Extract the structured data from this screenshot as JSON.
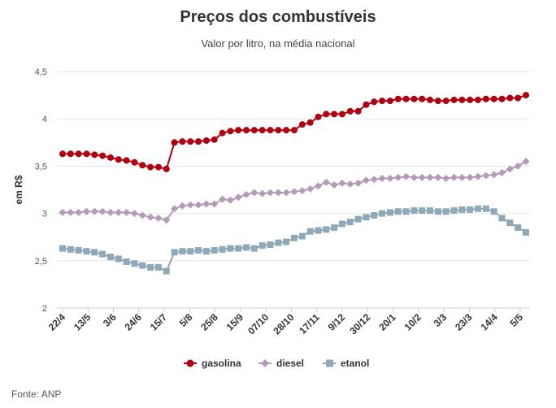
{
  "chart_data": {
    "type": "line",
    "title": "Preços dos combustíveis",
    "subtitle": "Valor por litro, na média nacional",
    "ylabel": "em R$",
    "source": "Fonte: ANP",
    "ylim": [
      2,
      4.5
    ],
    "yticks": [
      2,
      2.5,
      3,
      3.5,
      4,
      4.5
    ],
    "ytick_labels": [
      "2",
      "2,5",
      "3",
      "3,5",
      "4",
      "4,5"
    ],
    "xtick_labels": [
      "22/4",
      "13/5",
      "3/6",
      "24/6",
      "15/7",
      "5/8",
      "25/8",
      "15/9",
      "07/10",
      "28/10",
      "17/11",
      "9/12",
      "30/12",
      "20/1",
      "10/2",
      "3/3",
      "23/3",
      "14/4",
      "5/5"
    ],
    "legend_position": "bottom",
    "grid": true,
    "series": [
      {
        "name": "gasolina",
        "color": "#b0000f",
        "marker": "circle",
        "values": [
          3.63,
          3.63,
          3.63,
          3.63,
          3.62,
          3.61,
          3.59,
          3.57,
          3.56,
          3.54,
          3.51,
          3.49,
          3.49,
          3.47,
          3.75,
          3.76,
          3.76,
          3.76,
          3.77,
          3.78,
          3.85,
          3.87,
          3.88,
          3.88,
          3.88,
          3.88,
          3.88,
          3.88,
          3.88,
          3.88,
          3.94,
          3.96,
          4.02,
          4.05,
          4.05,
          4.05,
          4.08,
          4.08,
          4.15,
          4.18,
          4.19,
          4.19,
          4.21,
          4.21,
          4.21,
          4.21,
          4.2,
          4.19,
          4.19,
          4.2,
          4.2,
          4.2,
          4.2,
          4.21,
          4.21,
          4.21,
          4.22,
          4.22,
          4.25
        ]
      },
      {
        "name": "diesel",
        "color": "#b49ab8",
        "marker": "diamond",
        "values": [
          3.01,
          3.01,
          3.01,
          3.02,
          3.02,
          3.02,
          3.01,
          3.01,
          3.01,
          3.0,
          2.98,
          2.96,
          2.95,
          2.93,
          3.05,
          3.08,
          3.09,
          3.09,
          3.1,
          3.1,
          3.15,
          3.14,
          3.17,
          3.2,
          3.22,
          3.21,
          3.22,
          3.22,
          3.22,
          3.23,
          3.24,
          3.26,
          3.29,
          3.33,
          3.3,
          3.32,
          3.31,
          3.32,
          3.35,
          3.36,
          3.37,
          3.37,
          3.38,
          3.39,
          3.38,
          3.38,
          3.38,
          3.38,
          3.37,
          3.38,
          3.38,
          3.38,
          3.39,
          3.4,
          3.41,
          3.43,
          3.47,
          3.5,
          3.55
        ]
      },
      {
        "name": "etanol",
        "color": "#8fa9b8",
        "marker": "square",
        "values": [
          2.63,
          2.62,
          2.61,
          2.6,
          2.59,
          2.57,
          2.54,
          2.52,
          2.49,
          2.47,
          2.45,
          2.43,
          2.43,
          2.39,
          2.59,
          2.6,
          2.6,
          2.61,
          2.6,
          2.61,
          2.62,
          2.63,
          2.63,
          2.64,
          2.63,
          2.66,
          2.67,
          2.69,
          2.7,
          2.74,
          2.76,
          2.81,
          2.82,
          2.83,
          2.85,
          2.89,
          2.91,
          2.94,
          2.96,
          2.98,
          3.0,
          3.01,
          3.02,
          3.02,
          3.03,
          3.03,
          3.03,
          3.02,
          3.02,
          3.03,
          3.04,
          3.04,
          3.05,
          3.05,
          3.02,
          2.95,
          2.9,
          2.85,
          2.8
        ]
      }
    ]
  }
}
